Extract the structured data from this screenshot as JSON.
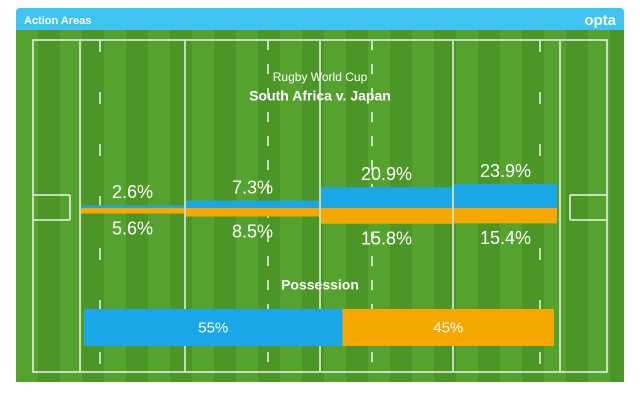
{
  "header": {
    "title": "Action Areas",
    "brand": "opta"
  },
  "chart_data": {
    "type": "action-areas",
    "title": "Rugby World Cup",
    "subtitle": "South Africa v. Japan",
    "series": [
      {
        "color": "#1aa7e8",
        "values": [
          2.6,
          7.3,
          20.9,
          23.9
        ],
        "value_labels": [
          "2.6%",
          "7.3%",
          "20.9%",
          "23.9%"
        ]
      },
      {
        "color": "#f5a800",
        "values": [
          5.6,
          8.5,
          15.8,
          15.4
        ],
        "value_labels": [
          "5.6%",
          "8.5%",
          "15.8%",
          "15.4%"
        ]
      }
    ],
    "possession": {
      "title": "Possession",
      "values": [
        55,
        45
      ],
      "value_labels": [
        "55%",
        "45%"
      ],
      "colors": [
        "#1aa7e8",
        "#f5a800"
      ]
    }
  }
}
